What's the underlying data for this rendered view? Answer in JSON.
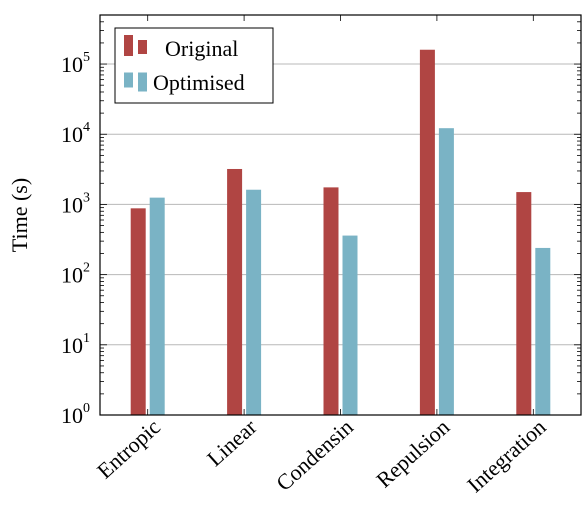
{
  "chart_data": {
    "type": "bar",
    "title": "",
    "xlabel": "",
    "ylabel": "Time (s)",
    "yscale": "log",
    "ylim": [
      1,
      500000
    ],
    "categories": [
      "Entropic",
      "Linear",
      "Condensin",
      "Repulsion",
      "Integration"
    ],
    "series": [
      {
        "name": "Original",
        "color": "#b04543",
        "values": [
          880,
          3200,
          1750,
          160000,
          1500
        ]
      },
      {
        "name": "Optimised",
        "color": "#7ab3c5",
        "values": [
          1250,
          1620,
          360,
          12200,
          240
        ]
      }
    ],
    "yticks": [
      {
        "base": "10",
        "exp": "0",
        "value": 1
      },
      {
        "base": "10",
        "exp": "1",
        "value": 10
      },
      {
        "base": "10",
        "exp": "2",
        "value": 100
      },
      {
        "base": "10",
        "exp": "3",
        "value": 1000
      },
      {
        "base": "10",
        "exp": "4",
        "value": 10000
      },
      {
        "base": "10",
        "exp": "5",
        "value": 100000
      }
    ],
    "grid": "horizontal-major",
    "legend_position": "top-left"
  }
}
